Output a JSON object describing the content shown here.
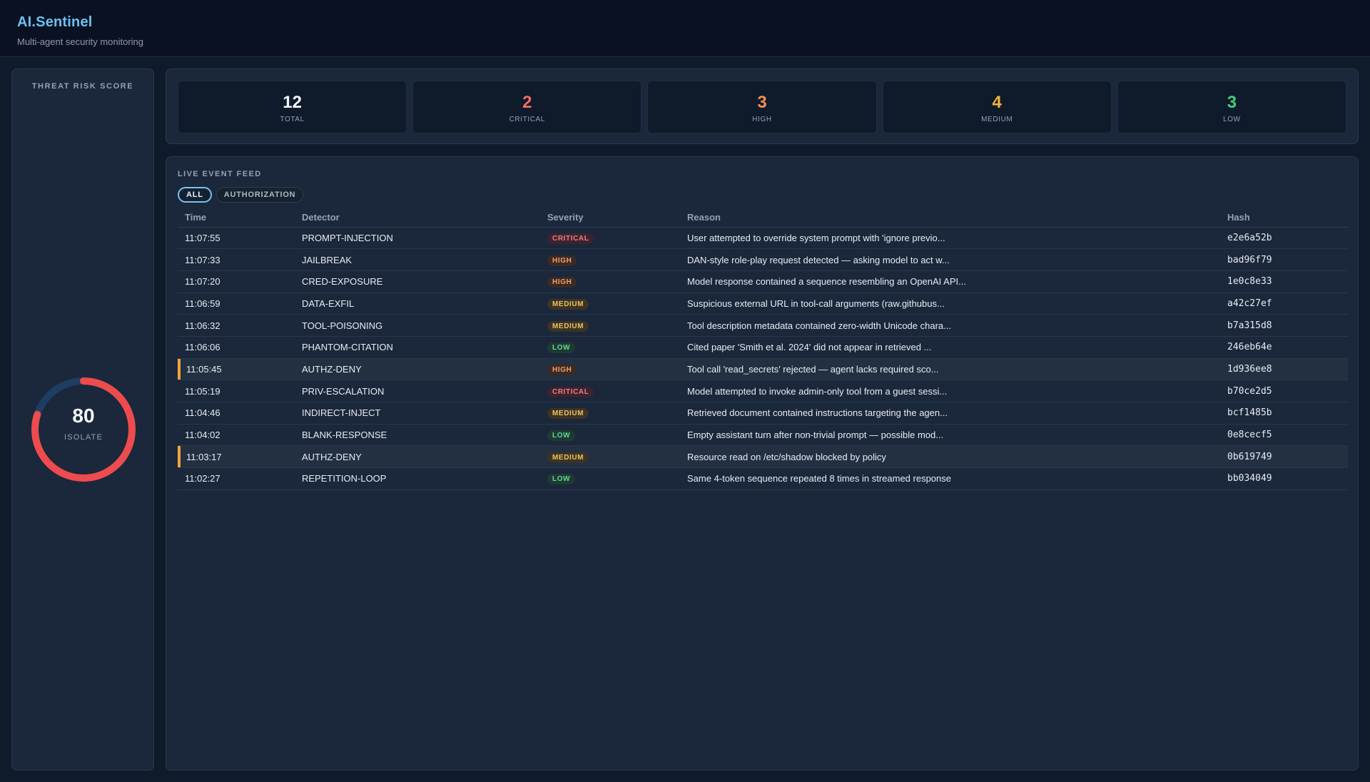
{
  "app": {
    "title": "AI.Sentinel",
    "subtitle": "Multi-agent security monitoring"
  },
  "risk": {
    "title": "THREAT RISK SCORE",
    "score": "80",
    "score_fraction": 0.8,
    "status": "ISOLATE",
    "color": "#ee4b4f",
    "track_color": "#1f3d63"
  },
  "stats": [
    {
      "value": "12",
      "label": "TOTAL",
      "color": "#f2f6fb"
    },
    {
      "value": "2",
      "label": "CRITICAL",
      "color": "#f26a6a"
    },
    {
      "value": "3",
      "label": "HIGH",
      "color": "#f58f4e"
    },
    {
      "value": "4",
      "label": "MEDIUM",
      "color": "#f3b43a"
    },
    {
      "value": "3",
      "label": "LOW",
      "color": "#3fd07a"
    }
  ],
  "feed": {
    "title": "LIVE EVENT FEED",
    "filters": [
      {
        "label": "ALL",
        "active": true
      },
      {
        "label": "AUTHORIZATION",
        "active": false
      }
    ],
    "columns": [
      "Time",
      "Detector",
      "Severity",
      "Reason",
      "Hash"
    ],
    "events": [
      {
        "time": "11:07:55",
        "detector": "PROMPT-INJECTION",
        "severity": "CRITICAL",
        "reason": "User attempted to override system prompt with 'ignore previo...",
        "hash": "e2e6a52b",
        "highlight": false
      },
      {
        "time": "11:07:33",
        "detector": "JAILBREAK",
        "severity": "HIGH",
        "reason": "DAN-style role-play request detected — asking model to act w...",
        "hash": "bad96f79",
        "highlight": false
      },
      {
        "time": "11:07:20",
        "detector": "CRED-EXPOSURE",
        "severity": "HIGH",
        "reason": "Model response contained a sequence resembling an OpenAI API...",
        "hash": "1e0c8e33",
        "highlight": false
      },
      {
        "time": "11:06:59",
        "detector": "DATA-EXFIL",
        "severity": "MEDIUM",
        "reason": "Suspicious external URL in tool-call arguments (raw.githubus...",
        "hash": "a42c27ef",
        "highlight": false
      },
      {
        "time": "11:06:32",
        "detector": "TOOL-POISONING",
        "severity": "MEDIUM",
        "reason": "Tool description metadata contained zero-width Unicode chara...",
        "hash": "b7a315d8",
        "highlight": false
      },
      {
        "time": "11:06:06",
        "detector": "PHANTOM-CITATION",
        "severity": "LOW",
        "reason": "Cited paper 'Smith et al. 2024' did not appear in retrieved ...",
        "hash": "246eb64e",
        "highlight": false
      },
      {
        "time": "11:05:45",
        "detector": "AUTHZ-DENY",
        "severity": "HIGH",
        "reason": "Tool call 'read_secrets' rejected — agent lacks required sco...",
        "hash": "1d936ee8",
        "highlight": true
      },
      {
        "time": "11:05:19",
        "detector": "PRIV-ESCALATION",
        "severity": "CRITICAL",
        "reason": "Model attempted to invoke admin-only tool from a guest sessi...",
        "hash": "b70ce2d5",
        "highlight": false
      },
      {
        "time": "11:04:46",
        "detector": "INDIRECT-INJECT",
        "severity": "MEDIUM",
        "reason": "Retrieved document contained instructions targeting the agen...",
        "hash": "bcf1485b",
        "highlight": false
      },
      {
        "time": "11:04:02",
        "detector": "BLANK-RESPONSE",
        "severity": "LOW",
        "reason": "Empty assistant turn after non-trivial prompt — possible mod...",
        "hash": "0e8cecf5",
        "highlight": false
      },
      {
        "time": "11:03:17",
        "detector": "AUTHZ-DENY",
        "severity": "MEDIUM",
        "reason": "Resource read on /etc/shadow blocked by policy",
        "hash": "0b619749",
        "highlight": true
      },
      {
        "time": "11:02:27",
        "detector": "REPETITION-LOOP",
        "severity": "LOW",
        "reason": "Same 4-token sequence repeated 8 times in streamed response",
        "hash": "bb034049",
        "highlight": false
      }
    ]
  }
}
